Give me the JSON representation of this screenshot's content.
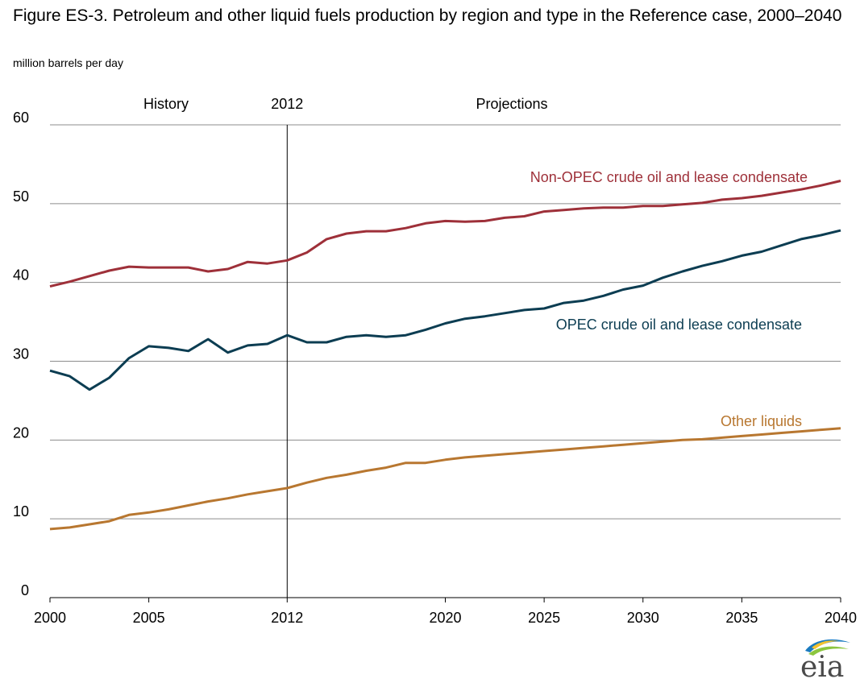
{
  "title": "Figure ES-3. Petroleum and other liquid fuels production by region and type in the Reference case, 2000–2040",
  "units_label": "million barrels per day",
  "annotations": {
    "history": "History",
    "divider_year": "2012",
    "projections": "Projections"
  },
  "logo_text": "eia",
  "chart_data": {
    "type": "line",
    "title": "Figure ES-3. Petroleum and other liquid fuels production by region and type in the Reference case, 2000–2040",
    "ylabel": "million barrels per day",
    "xlabel": "",
    "xlim": [
      2000,
      2040
    ],
    "ylim": [
      0,
      60
    ],
    "x_ticks": [
      2000,
      2005,
      2012,
      2020,
      2025,
      2030,
      2035,
      2040
    ],
    "y_ticks": [
      0,
      10,
      20,
      30,
      40,
      50,
      60
    ],
    "grid": "horizontal",
    "divider_x": 2012,
    "x": [
      2000,
      2001,
      2002,
      2003,
      2004,
      2005,
      2006,
      2007,
      2008,
      2009,
      2010,
      2011,
      2012,
      2013,
      2014,
      2015,
      2016,
      2017,
      2018,
      2019,
      2020,
      2021,
      2022,
      2023,
      2024,
      2025,
      2026,
      2027,
      2028,
      2029,
      2030,
      2031,
      2032,
      2033,
      2034,
      2035,
      2036,
      2037,
      2038,
      2039,
      2040
    ],
    "series": [
      {
        "name": "Non-OPEC crude oil and lease condensate",
        "color": "#9E3039",
        "values": [
          39.5,
          40.1,
          40.8,
          41.5,
          42.0,
          41.9,
          41.9,
          41.9,
          41.4,
          41.7,
          42.6,
          42.4,
          42.8,
          43.8,
          45.5,
          46.2,
          46.5,
          46.5,
          46.9,
          47.5,
          47.8,
          47.7,
          47.8,
          48.2,
          48.4,
          49.0,
          49.2,
          49.4,
          49.5,
          49.5,
          49.7,
          49.7,
          49.9,
          50.1,
          50.5,
          50.7,
          51.0,
          51.4,
          51.8,
          52.3,
          52.9
        ]
      },
      {
        "name": "OPEC crude oil and lease condensate",
        "color": "#0C3D52",
        "values": [
          28.8,
          28.1,
          26.4,
          27.9,
          30.4,
          31.9,
          31.7,
          31.3,
          32.8,
          31.1,
          32.0,
          32.2,
          33.3,
          32.4,
          32.4,
          33.1,
          33.3,
          33.1,
          33.3,
          34.0,
          34.8,
          35.4,
          35.7,
          36.1,
          36.5,
          36.7,
          37.4,
          37.7,
          38.3,
          39.1,
          39.6,
          40.6,
          41.4,
          42.1,
          42.7,
          43.4,
          43.9,
          44.7,
          45.5,
          46.0,
          46.6
        ]
      },
      {
        "name": "Other liquids",
        "color": "#B87730",
        "values": [
          8.7,
          8.9,
          9.3,
          9.7,
          10.5,
          10.8,
          11.2,
          11.7,
          12.2,
          12.6,
          13.1,
          13.5,
          13.9,
          14.6,
          15.2,
          15.6,
          16.1,
          16.5,
          17.1,
          17.1,
          17.5,
          17.8,
          18.0,
          18.2,
          18.4,
          18.6,
          18.8,
          19.0,
          19.2,
          19.4,
          19.6,
          19.8,
          20.0,
          20.1,
          20.3,
          20.5,
          20.7,
          20.9,
          21.1,
          21.3,
          21.5
        ]
      }
    ]
  }
}
